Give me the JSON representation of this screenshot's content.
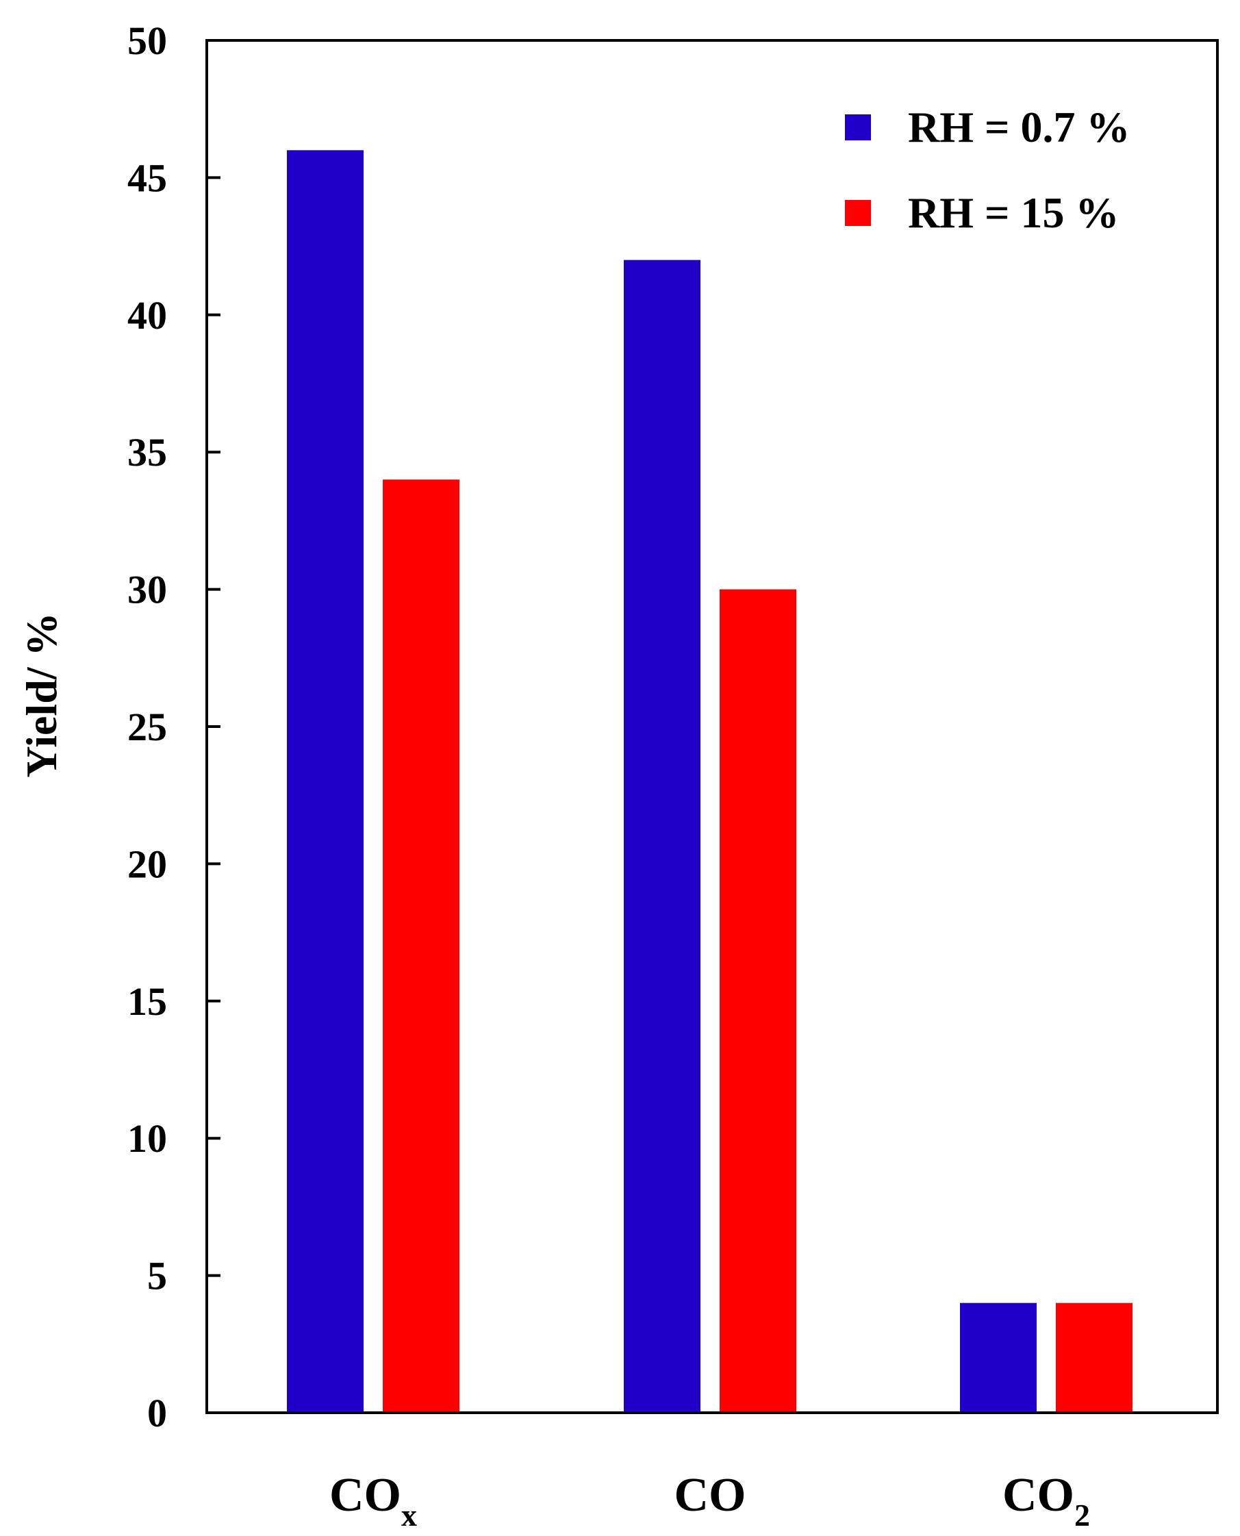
{
  "chart_data": {
    "type": "bar",
    "categories": [
      {
        "base": "CO",
        "sub": "x"
      },
      {
        "base": "CO",
        "sub": ""
      },
      {
        "base": "CO",
        "sub": "2"
      }
    ],
    "series": [
      {
        "name": "RH = 0.7 %",
        "color": "#2000C8",
        "values": [
          46,
          42,
          4
        ]
      },
      {
        "name": "RH = 15 %",
        "color": "#FF0000",
        "values": [
          34,
          30,
          4
        ]
      }
    ],
    "title": "",
    "xlabel": "",
    "ylabel": "Yield/ %",
    "ylim": [
      0,
      50
    ],
    "yticks": [
      0,
      5,
      10,
      15,
      20,
      25,
      30,
      35,
      40,
      45,
      50
    ],
    "grid": false,
    "legend_position": "top-right"
  }
}
